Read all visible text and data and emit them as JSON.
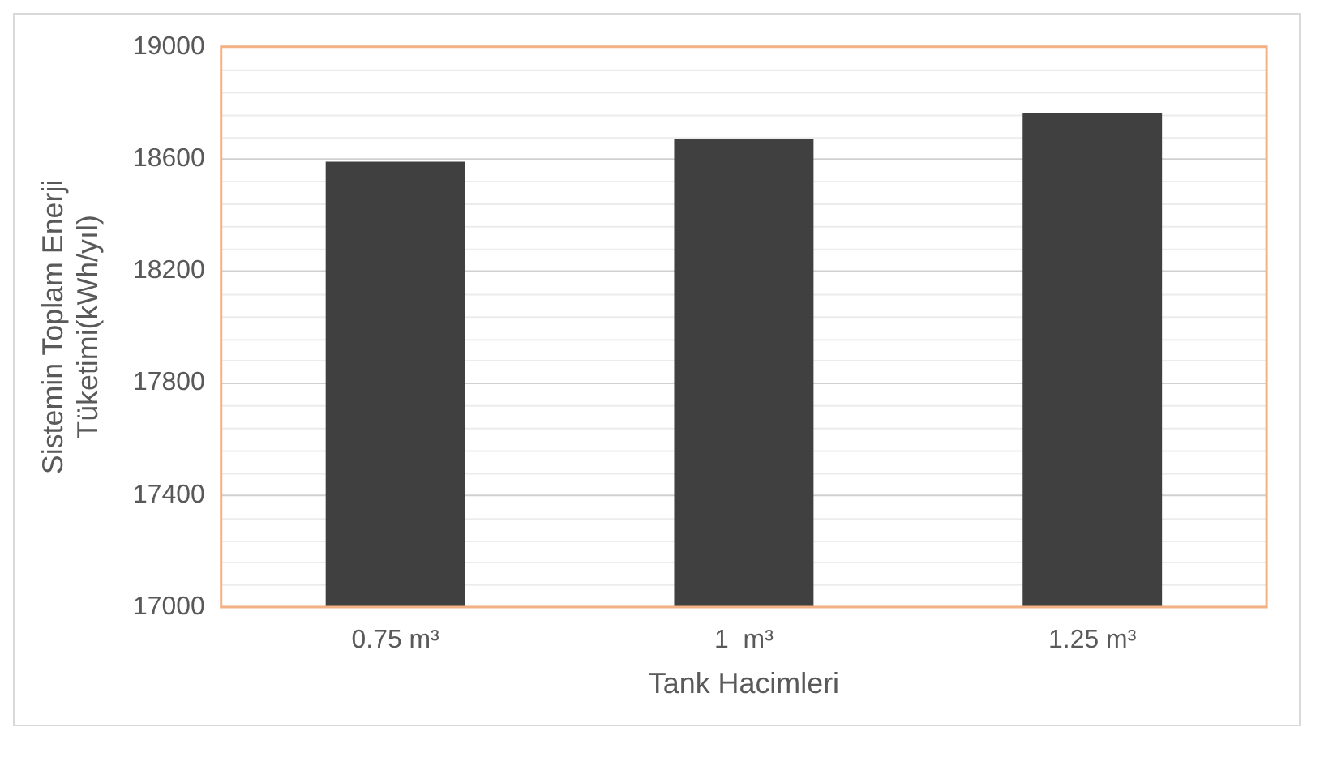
{
  "chart_data": {
    "type": "bar",
    "xlabel": "Tank Hacimleri",
    "ylabel": "Sistemin Toplam Enerji\nTüketimi(kWh/yıl)",
    "categories": [
      "0.75 m³",
      "1  m³",
      "1.25 m³"
    ],
    "values": [
      18590,
      18670,
      18765
    ],
    "color": "#404040",
    "ylim": [
      17000,
      19000
    ],
    "yticks": [
      17000,
      17400,
      17800,
      18200,
      18600,
      19000
    ],
    "grid": "y",
    "legend": false
  }
}
